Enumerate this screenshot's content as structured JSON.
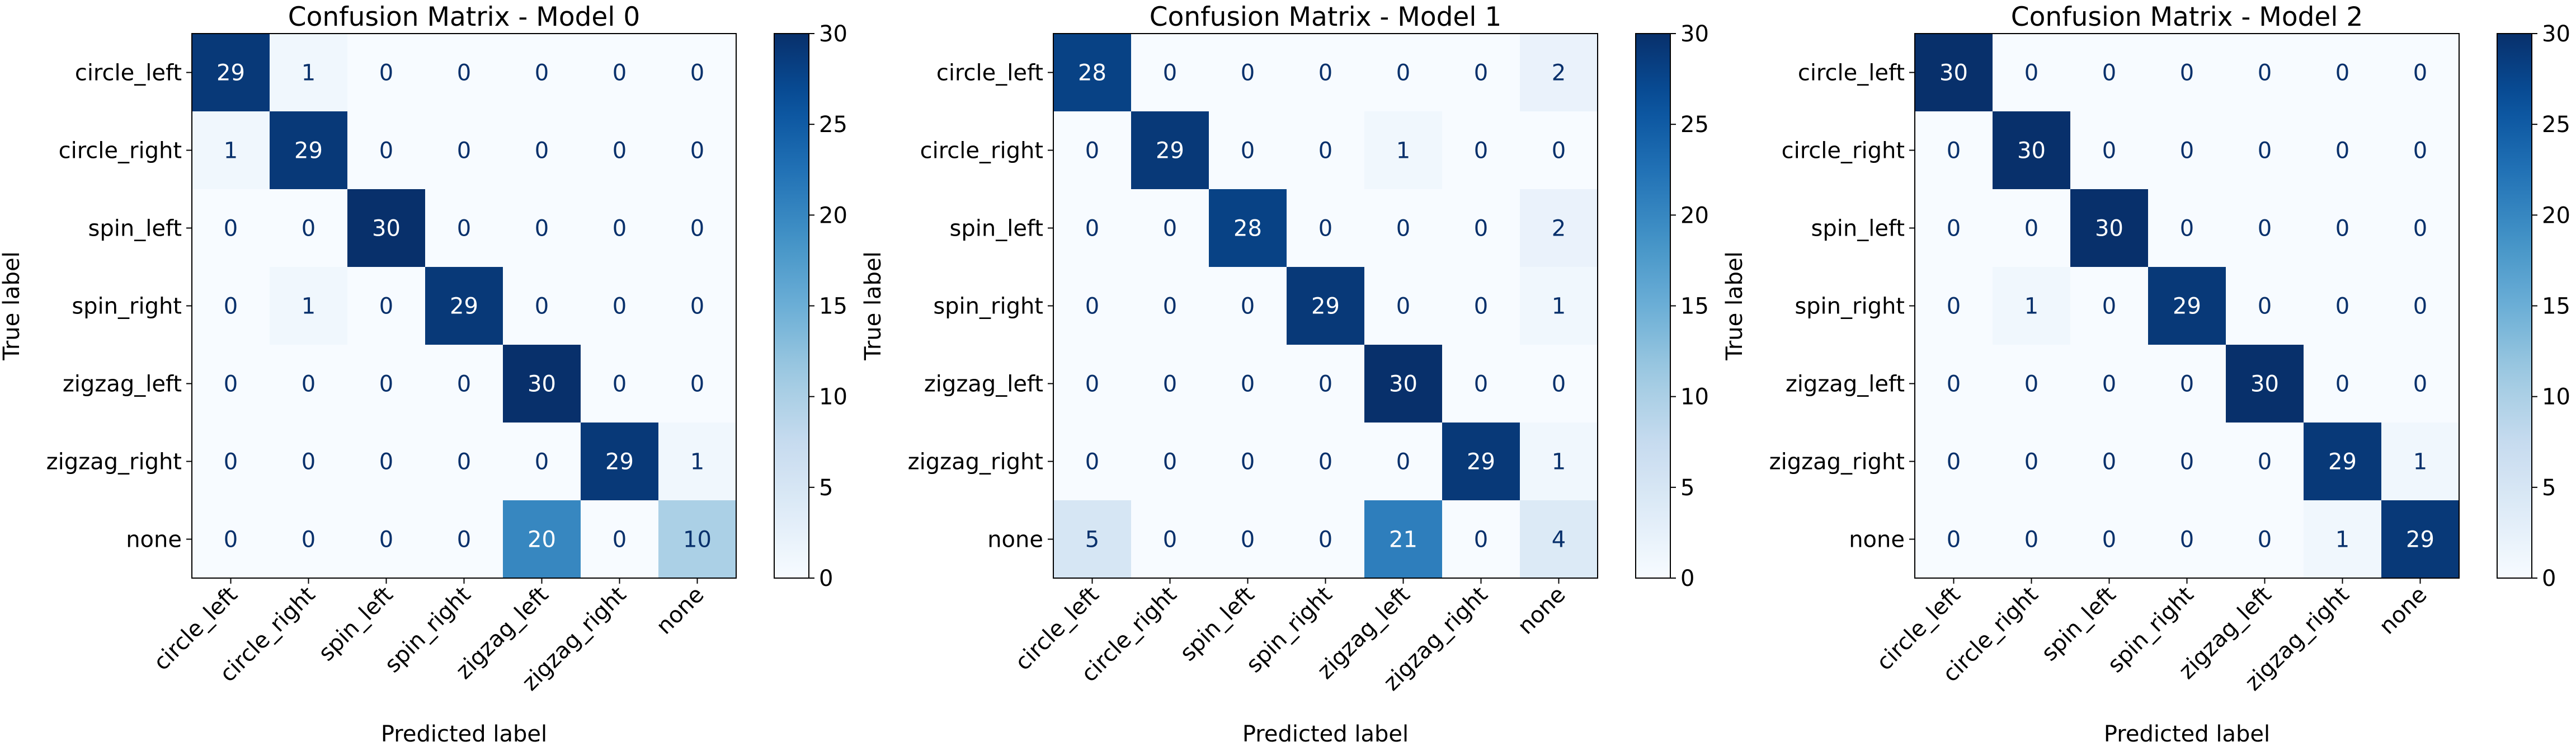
{
  "chart_data": [
    {
      "type": "heatmap",
      "title": "Confusion Matrix - Model 0",
      "xlabel": "Predicted label",
      "ylabel": "True label",
      "x_categories": [
        "circle_left",
        "circle_right",
        "spin_left",
        "spin_right",
        "zigzag_left",
        "zigzag_right",
        "none"
      ],
      "y_categories": [
        "circle_left",
        "circle_right",
        "spin_left",
        "spin_right",
        "zigzag_left",
        "zigzag_right",
        "none"
      ],
      "values": [
        [
          29,
          1,
          0,
          0,
          0,
          0,
          0
        ],
        [
          1,
          29,
          0,
          0,
          0,
          0,
          0
        ],
        [
          0,
          0,
          30,
          0,
          0,
          0,
          0
        ],
        [
          0,
          1,
          0,
          29,
          0,
          0,
          0
        ],
        [
          0,
          0,
          0,
          0,
          30,
          0,
          0
        ],
        [
          0,
          0,
          0,
          0,
          0,
          29,
          1
        ],
        [
          0,
          0,
          0,
          0,
          20,
          0,
          10
        ]
      ],
      "colorbar_ticks": [
        0,
        5,
        10,
        15,
        20,
        25,
        30
      ],
      "vmin": 0,
      "vmax": 30,
      "colormap": "Blues"
    },
    {
      "type": "heatmap",
      "title": "Confusion Matrix - Model 1",
      "xlabel": "Predicted label",
      "ylabel": "True label",
      "x_categories": [
        "circle_left",
        "circle_right",
        "spin_left",
        "spin_right",
        "zigzag_left",
        "zigzag_right",
        "none"
      ],
      "y_categories": [
        "circle_left",
        "circle_right",
        "spin_left",
        "spin_right",
        "zigzag_left",
        "zigzag_right",
        "none"
      ],
      "values": [
        [
          28,
          0,
          0,
          0,
          0,
          0,
          2
        ],
        [
          0,
          29,
          0,
          0,
          1,
          0,
          0
        ],
        [
          0,
          0,
          28,
          0,
          0,
          0,
          2
        ],
        [
          0,
          0,
          0,
          29,
          0,
          0,
          1
        ],
        [
          0,
          0,
          0,
          0,
          30,
          0,
          0
        ],
        [
          0,
          0,
          0,
          0,
          0,
          29,
          1
        ],
        [
          5,
          0,
          0,
          0,
          21,
          0,
          4
        ]
      ],
      "colorbar_ticks": [
        0,
        5,
        10,
        15,
        20,
        25,
        30
      ],
      "vmin": 0,
      "vmax": 30,
      "colormap": "Blues"
    },
    {
      "type": "heatmap",
      "title": "Confusion Matrix - Model 2",
      "xlabel": "Predicted label",
      "ylabel": "True label",
      "x_categories": [
        "circle_left",
        "circle_right",
        "spin_left",
        "spin_right",
        "zigzag_left",
        "zigzag_right",
        "none"
      ],
      "y_categories": [
        "circle_left",
        "circle_right",
        "spin_left",
        "spin_right",
        "zigzag_left",
        "zigzag_right",
        "none"
      ],
      "values": [
        [
          30,
          0,
          0,
          0,
          0,
          0,
          0
        ],
        [
          0,
          30,
          0,
          0,
          0,
          0,
          0
        ],
        [
          0,
          0,
          30,
          0,
          0,
          0,
          0
        ],
        [
          0,
          1,
          0,
          29,
          0,
          0,
          0
        ],
        [
          0,
          0,
          0,
          0,
          30,
          0,
          0
        ],
        [
          0,
          0,
          0,
          0,
          0,
          29,
          1
        ],
        [
          0,
          0,
          0,
          0,
          0,
          1,
          29
        ]
      ],
      "colorbar_ticks": [
        0,
        5,
        10,
        15,
        20,
        25,
        30
      ],
      "vmin": 0,
      "vmax": 30,
      "colormap": "Blues"
    }
  ]
}
